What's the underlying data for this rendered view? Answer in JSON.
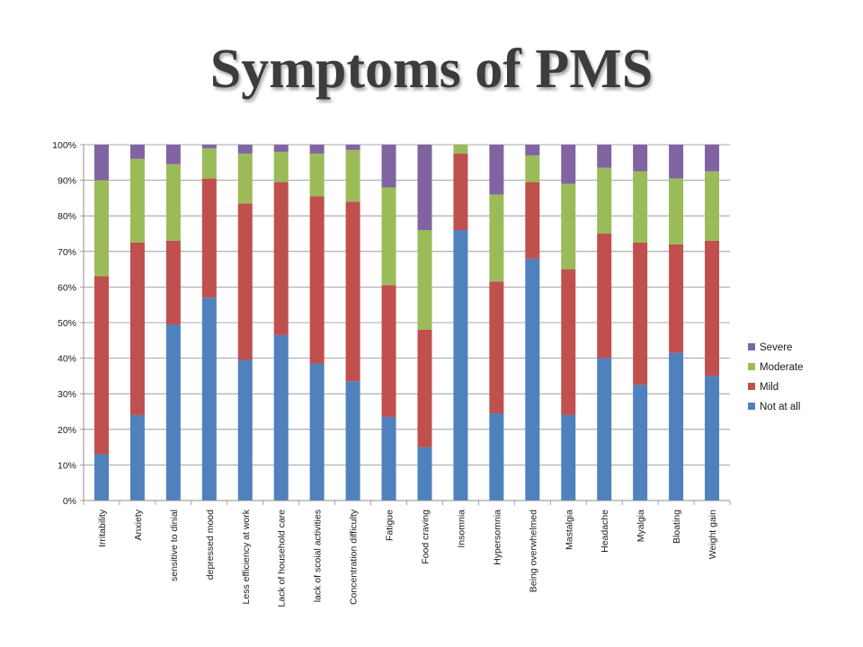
{
  "slide": {
    "title": "Symptoms of PMS"
  },
  "chart_data": {
    "type": "bar",
    "stacked": true,
    "percent_stacked": true,
    "categories": [
      "Irritability",
      "Anxiety",
      "sensitive to dinial",
      "depressed mood",
      "Less efficiency at work",
      "Lack of household care",
      "lack of scoial activities",
      "Concentration difficulty",
      "Fatigue",
      "Food craving",
      "Insomnia",
      "Hypersomnia",
      "Being overwhelmed",
      "Mastalgia",
      "Headache",
      "Myalgia",
      "Bloating",
      "Weight gain"
    ],
    "series": [
      {
        "name": "Not at all",
        "color": "#4f81bd",
        "values": [
          13,
          24,
          49.5,
          57,
          39.5,
          46.5,
          38.5,
          33.5,
          23.5,
          15,
          76,
          24.5,
          68,
          24,
          40,
          32.5,
          41.5,
          35
        ]
      },
      {
        "name": "Mild",
        "color": "#c0504d",
        "values": [
          50,
          48.5,
          23.5,
          33.5,
          44,
          43,
          47,
          50.5,
          37,
          33,
          21.5,
          37,
          21.5,
          41,
          35,
          40,
          30.5,
          38
        ]
      },
      {
        "name": "Moderate",
        "color": "#9bbb59",
        "values": [
          27,
          23.5,
          21.5,
          8.5,
          14,
          8.5,
          12,
          14.5,
          27.5,
          28,
          2.5,
          24.5,
          7.5,
          24,
          18.5,
          20,
          18.5,
          19.5
        ]
      },
      {
        "name": "Severe",
        "color": "#8064a2",
        "values": [
          10,
          4,
          5.5,
          1,
          2.5,
          2,
          2.5,
          1.5,
          12,
          24,
          0,
          14,
          3,
          11,
          6.5,
          7.5,
          9.5,
          7.5
        ]
      }
    ],
    "y_ticks": [
      "0%",
      "10%",
      "20%",
      "30%",
      "40%",
      "50%",
      "60%",
      "70%",
      "80%",
      "90%",
      "100%"
    ],
    "ylim": [
      0,
      100
    ],
    "grid": true,
    "legend_position": "right",
    "legend_order": [
      "Severe",
      "Moderate",
      "Mild",
      "Not at all"
    ]
  }
}
